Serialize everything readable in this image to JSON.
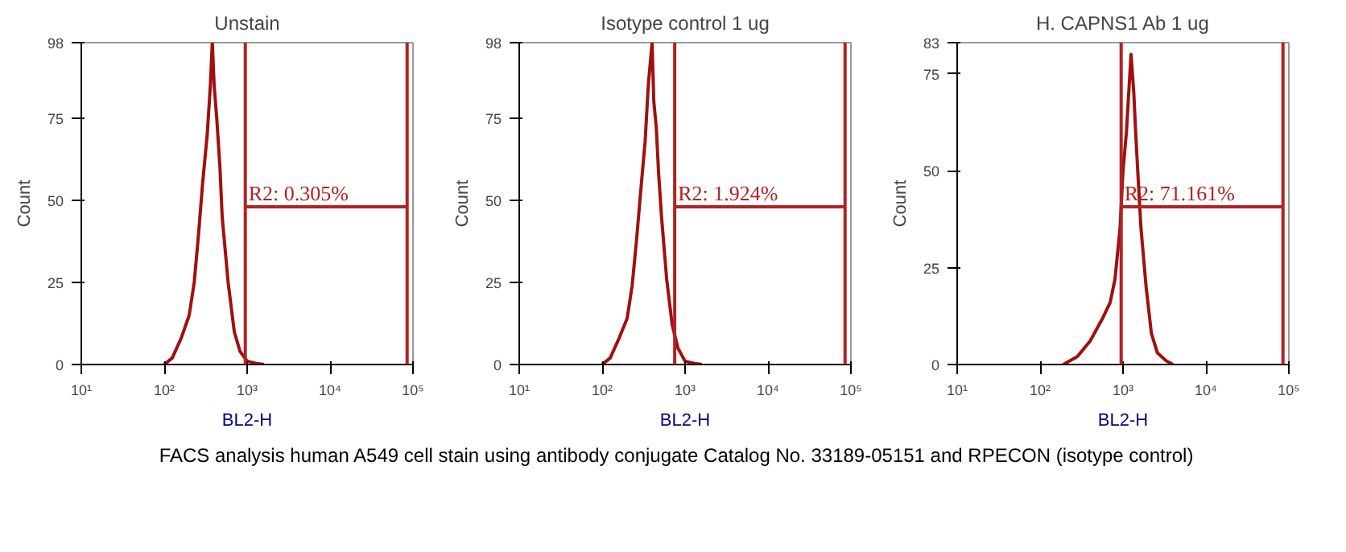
{
  "chart_data": [
    {
      "type": "line",
      "title": "Unstain",
      "xlabel": "BL2-H",
      "ylabel": "Count",
      "log": "x",
      "xlim": [
        10,
        100000
      ],
      "ylim": [
        0,
        98
      ],
      "xticks": [
        {
          "value": 10,
          "label": "10¹"
        },
        {
          "value": 100,
          "label": "10²"
        },
        {
          "value": 1000,
          "label": "10³"
        },
        {
          "value": 10000,
          "label": "10⁴"
        },
        {
          "value": 100000,
          "label": "10⁵"
        }
      ],
      "yticks": [
        0,
        25,
        50,
        75,
        98
      ],
      "grid": false,
      "marker": "none",
      "line_style": "solid",
      "series": [
        {
          "color": "#a01010",
          "x": [
            100,
            125,
            160,
            200,
            230,
            260,
            290,
            330,
            360,
            380,
            400,
            430,
            470,
            500,
            590,
            700,
            820,
            1000,
            1300,
            1600
          ],
          "values": [
            0,
            2,
            8,
            15,
            25,
            40,
            55,
            70,
            85,
            98,
            85,
            75,
            60,
            45,
            25,
            10,
            4,
            1,
            0.3,
            0
          ]
        }
      ],
      "ref_lines": [
        {
          "axis": "x",
          "value": 950,
          "color": "#b22222"
        },
        {
          "axis": "x",
          "value": 85000,
          "color": "#b22222"
        }
      ],
      "annotations": [
        "R2: 0.305%"
      ]
    },
    {
      "type": "line",
      "title": "Isotype control 1 ug",
      "xlabel": "BL2-H",
      "ylabel": "Count",
      "log": "x",
      "xlim": [
        10,
        100000
      ],
      "ylim": [
        0,
        98
      ],
      "xticks": [
        {
          "value": 10,
          "label": "10¹"
        },
        {
          "value": 100,
          "label": "10²"
        },
        {
          "value": 1000,
          "label": "10³"
        },
        {
          "value": 10000,
          "label": "10⁴"
        },
        {
          "value": 100000,
          "label": "10⁵"
        }
      ],
      "yticks": [
        0,
        25,
        50,
        75,
        98
      ],
      "grid": false,
      "marker": "none",
      "line_style": "solid",
      "series": [
        {
          "color": "#a01010",
          "x": [
            100,
            125,
            160,
            200,
            230,
            260,
            290,
            330,
            360,
            400,
            420,
            450,
            480,
            520,
            600,
            700,
            820,
            1000,
            1300,
            1600
          ],
          "values": [
            0,
            2,
            8,
            14,
            24,
            38,
            52,
            68,
            85,
            98,
            80,
            72,
            58,
            45,
            26,
            12,
            5,
            1,
            0.3,
            0
          ]
        }
      ],
      "ref_lines": [
        {
          "axis": "x",
          "value": 750,
          "color": "#b22222"
        },
        {
          "axis": "x",
          "value": 85000,
          "color": "#b22222"
        }
      ],
      "annotations": [
        "R2: 1.924%"
      ]
    },
    {
      "type": "line",
      "title": "H. CAPNS1 Ab 1 ug",
      "xlabel": "BL2-H",
      "ylabel": "Count",
      "log": "x",
      "xlim": [
        10,
        100000
      ],
      "ylim": [
        0,
        83
      ],
      "xticks": [
        {
          "value": 10,
          "label": "10¹"
        },
        {
          "value": 100,
          "label": "10²"
        },
        {
          "value": 1000,
          "label": "10³"
        },
        {
          "value": 10000,
          "label": "10⁴"
        },
        {
          "value": 100000,
          "label": "10⁵"
        }
      ],
      "yticks": [
        0,
        25,
        50,
        75,
        83
      ],
      "grid": false,
      "marker": "none",
      "line_style": "solid",
      "series": [
        {
          "color": "#a01010",
          "x": [
            190,
            280,
            400,
            570,
            700,
            800,
            920,
            1000,
            1100,
            1250,
            1350,
            1420,
            1550,
            1650,
            1900,
            2200,
            2600,
            3300,
            4000
          ],
          "values": [
            0,
            2,
            6,
            12,
            16,
            22,
            35,
            50,
            60,
            80,
            70,
            60,
            45,
            35,
            20,
            8,
            3,
            1,
            0
          ]
        }
      ],
      "ref_lines": [
        {
          "axis": "x",
          "value": 950,
          "color": "#b22222"
        },
        {
          "axis": "x",
          "value": 85000,
          "color": "#b22222"
        }
      ],
      "annotations": [
        "R2: 71.161%",
        "FACS analysis human A549 cell stain using antibody conjugate Catalog No. 33189-05151 and RPECON (isotype control)"
      ]
    }
  ]
}
